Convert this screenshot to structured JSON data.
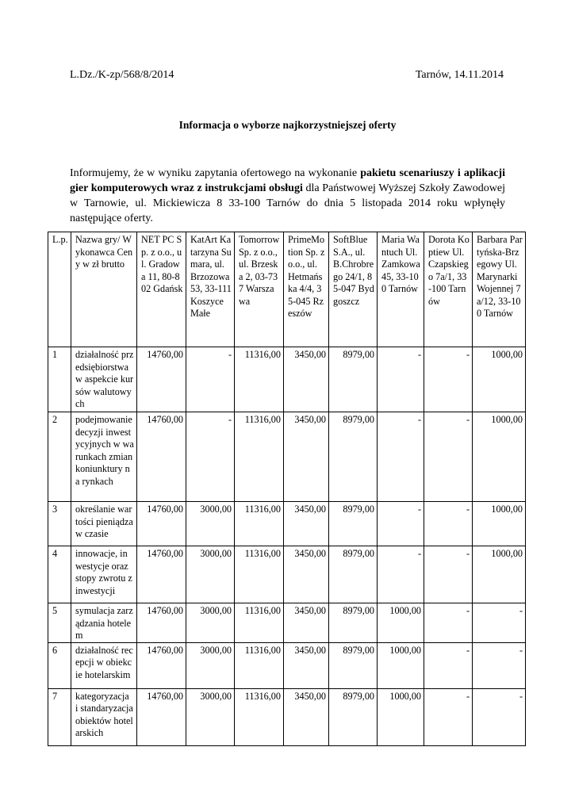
{
  "header": {
    "reference": "L.Dz./K-zp/568/8/2014",
    "place_date": "Tarnów, 14.11.2014"
  },
  "title": "Informacja o wyborze najkorzystniejszej oferty",
  "intro": {
    "part1": "Informujemy, że w wyniku zapytania ofertowego na wykonanie ",
    "bold": "pakietu scenariuszy i aplikacji gier komputerowych wraz z instrukcjami obsługi",
    "part2": " dla Państwowej Wyższej Szkoły Zawodowej w Tarnowie, ul. Mickiewicza 8 33-100 Tarnów do dnia 5 listopada 2014 roku wpłynęły następujące oferty."
  },
  "table": {
    "headers": [
      "L.p.",
      "Nazwa gry/ Wykonawca Ceny w zł brutto",
      "NET PC Sp. z o.o., ul. Gradowa 11, 80-802 Gdańsk",
      "KatArt Katarzyna Sumara, ul. Brzozowa 53, 33-111 Koszyce Małe",
      "Tomorrow Sp.  z o.o., ul. Brzeska 2, 03-737 Warszawa",
      "PrimeMotion Sp. z o.o., ul. Hetmańska 4/4, 35-045 Rzeszów",
      "SoftBlue S.A., ul. B.Chrobrego 24/1, 85-047 Bydgoszcz",
      "Maria Wantuch Ul. Zamkowa 45, 33-100 Tarnów",
      "Dorota Koptiew Ul. Czapskiego 7a/1, 33-100 Tarnów",
      "Barbara Partyńska-Brzegowy Ul. Marynarki Wojennej 7a/12, 33-100 Tarnów"
    ],
    "rows": [
      [
        "1",
        "działalność przedsiębiorstwa w aspekcie kursów walutowych",
        "14760,00",
        "-",
        "11316,00",
        "3450,00",
        "8979,00",
        "-",
        "-",
        "1000,00"
      ],
      [
        "2",
        "podejmowanie decyzji inwestycyjnych w warunkach zmian koniunktury na rynkach",
        "14760,00",
        "-",
        "11316,00",
        "3450,00",
        "8979,00",
        "-",
        "-",
        "1000,00"
      ],
      [
        "3",
        "określanie wartości pieniądza w czasie",
        "14760,00",
        "3000,00",
        "11316,00",
        "3450,00",
        "8979,00",
        "-",
        "-",
        "1000,00"
      ],
      [
        "4",
        "innowacje, inwestycje oraz stopy zwrotu z inwestycji",
        "14760,00",
        "3000,00",
        "11316,00",
        "3450,00",
        "8979,00",
        "-",
        "-",
        "1000,00"
      ],
      [
        "5",
        "symulacja zarządzania hotelem",
        "14760,00",
        "3000,00",
        "11316,00",
        "3450,00",
        "8979,00",
        "1000,00",
        "-",
        "-"
      ],
      [
        "6",
        "działalność recepcji w obiekcie hotelarskim",
        "14760,00",
        "3000,00",
        "11316,00",
        "3450,00",
        "8979,00",
        "1000,00",
        "-",
        "-"
      ],
      [
        "7",
        "kategoryzacja i standaryzacja obiektów hotelarskich",
        "14760,00",
        "3000,00",
        "11316,00",
        "3450,00",
        "8979,00",
        "1000,00",
        "-",
        "-"
      ]
    ]
  }
}
